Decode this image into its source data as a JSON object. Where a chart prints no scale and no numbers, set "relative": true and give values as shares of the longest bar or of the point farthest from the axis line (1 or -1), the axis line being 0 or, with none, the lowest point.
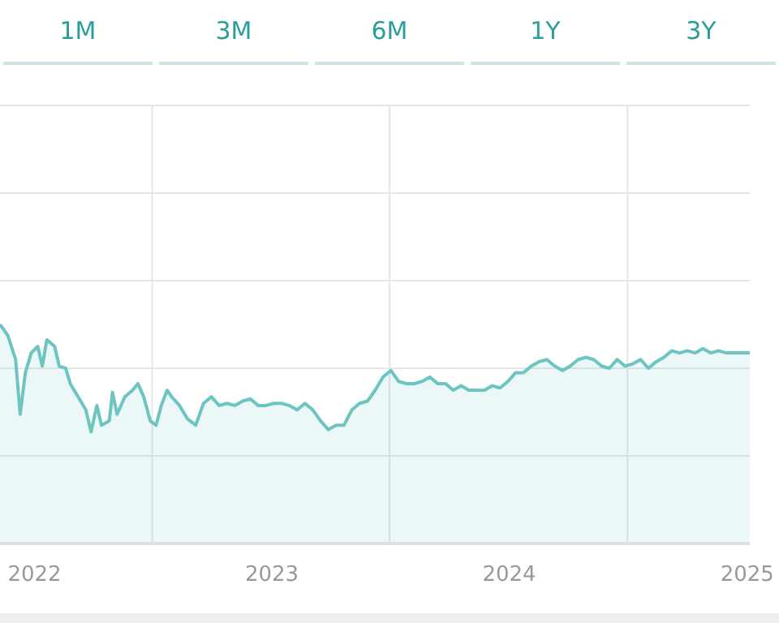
{
  "chart_data": {
    "type": "area",
    "relative": true,
    "grid": true,
    "annotations": [
      "1M",
      "3M",
      "6M",
      "1Y",
      "3Y"
    ],
    "x": [
      "2021-11-09",
      "2021-11-21",
      "2021-12-03",
      "2021-12-10",
      "2021-12-18",
      "2021-12-27",
      "2022-01-06",
      "2022-01-13",
      "2022-01-20",
      "2022-02-01",
      "2022-02-08",
      "2022-02-18",
      "2022-02-25",
      "2022-03-09",
      "2022-03-21",
      "2022-03-29",
      "2022-04-07",
      "2022-04-14",
      "2022-04-26",
      "2022-05-01",
      "2022-05-08",
      "2022-05-20",
      "2022-06-01",
      "2022-06-09",
      "2022-06-18",
      "2022-06-28",
      "2022-07-07",
      "2022-07-15",
      "2022-07-24",
      "2022-07-31",
      "2022-08-12",
      "2022-08-24",
      "2022-09-06",
      "2022-09-18",
      "2022-09-30",
      "2022-10-12",
      "2022-10-24",
      "2022-11-05",
      "2022-11-17",
      "2022-11-29",
      "2022-12-11",
      "2022-12-23",
      "2023-01-04",
      "2023-01-16",
      "2023-01-28",
      "2023-02-09",
      "2023-02-21",
      "2023-03-05",
      "2023-03-17",
      "2023-03-29",
      "2023-04-10",
      "2023-04-22",
      "2023-05-04",
      "2023-05-16",
      "2023-05-28",
      "2023-06-09",
      "2023-06-21",
      "2023-07-03",
      "2023-07-15",
      "2023-07-27",
      "2023-08-08",
      "2023-08-20",
      "2023-09-01",
      "2023-09-13",
      "2023-09-25",
      "2023-10-07",
      "2023-10-19",
      "2023-10-31",
      "2023-11-12",
      "2023-11-24",
      "2023-12-06",
      "2023-12-18",
      "2023-12-30",
      "2024-01-11",
      "2024-01-23",
      "2024-02-04",
      "2024-02-16",
      "2024-02-28",
      "2024-03-11",
      "2024-03-23",
      "2024-04-04",
      "2024-04-16",
      "2024-04-28",
      "2024-05-10",
      "2024-05-22",
      "2024-06-03",
      "2024-06-15",
      "2024-06-27",
      "2024-07-09",
      "2024-07-21",
      "2024-08-02",
      "2024-08-14",
      "2024-08-26",
      "2024-09-07",
      "2024-09-19",
      "2024-10-01",
      "2024-10-13",
      "2024-10-25",
      "2024-11-06",
      "2024-11-18",
      "2024-11-30",
      "2024-12-12",
      "2024-12-24",
      "2025-01-05"
    ],
    "series": [
      {
        "color": "#6cc5c0",
        "values": [
          1.0,
          0.95,
          0.84,
          0.59,
          0.78,
          0.87,
          0.9,
          0.81,
          0.93,
          0.9,
          0.81,
          0.8,
          0.73,
          0.67,
          0.61,
          0.51,
          0.63,
          0.54,
          0.56,
          0.69,
          0.59,
          0.67,
          0.7,
          0.73,
          0.67,
          0.56,
          0.54,
          0.63,
          0.7,
          0.67,
          0.63,
          0.57,
          0.54,
          0.64,
          0.67,
          0.63,
          0.64,
          0.63,
          0.65,
          0.66,
          0.63,
          0.63,
          0.64,
          0.64,
          0.63,
          0.61,
          0.64,
          0.61,
          0.56,
          0.52,
          0.54,
          0.54,
          0.61,
          0.64,
          0.65,
          0.7,
          0.76,
          0.79,
          0.74,
          0.73,
          0.73,
          0.74,
          0.76,
          0.73,
          0.73,
          0.7,
          0.72,
          0.7,
          0.7,
          0.7,
          0.72,
          0.71,
          0.74,
          0.78,
          0.78,
          0.81,
          0.83,
          0.84,
          0.81,
          0.79,
          0.81,
          0.84,
          0.85,
          0.84,
          0.81,
          0.8,
          0.84,
          0.81,
          0.82,
          0.84,
          0.8,
          0.83,
          0.85,
          0.88,
          0.87,
          0.88,
          0.87,
          0.89,
          0.87,
          0.88,
          0.87,
          0.87,
          0.87,
          0.87
        ]
      }
    ],
    "xlim": [
      "2021-11-09",
      "2025-01-05"
    ],
    "xticks": [
      {
        "value": "2022-01-01",
        "label": "2022"
      },
      {
        "value": "2022-07-01",
        "label": null
      },
      {
        "value": "2023-01-01",
        "label": "2023"
      },
      {
        "value": "2023-07-01",
        "label": null
      },
      {
        "value": "2024-01-01",
        "label": "2024"
      },
      {
        "value": "2024-07-01",
        "label": null
      },
      {
        "value": "2025-01-01",
        "label": "2025"
      }
    ]
  }
}
